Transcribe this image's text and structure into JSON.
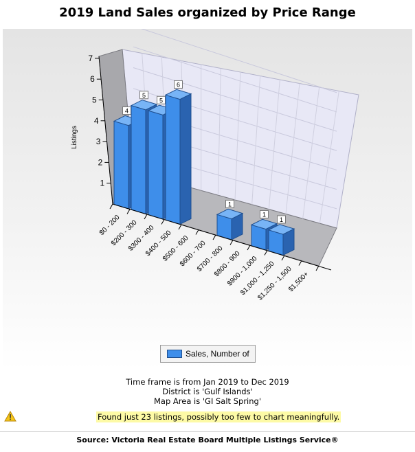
{
  "title": "2019 Land Sales organized by Price Range",
  "chart_data": {
    "type": "bar",
    "title": "2019 Land Sales organized by Price Range",
    "ylabel": "Listings",
    "xlabel": "",
    "ylim": [
      0,
      7
    ],
    "yticks": [
      "1",
      "2",
      "3",
      "4",
      "5",
      "6",
      "7"
    ],
    "categories": [
      "$0 - 200",
      "$200 - 300",
      "$300 - 400",
      "$400 - 500",
      "$500 - 600",
      "$600 - 700",
      "$700 - 800",
      "$800 - 900",
      "$900 - 1,000",
      "$1,000 - 1,250",
      "$1,250 - 1,500",
      "$1,500+"
    ],
    "series": [
      {
        "name": "Sales, Number of",
        "values": [
          4,
          5,
          5,
          6,
          0,
          0,
          1,
          0,
          1,
          1,
          0,
          0
        ]
      }
    ],
    "data_labels": [
      "4",
      "5",
      "5",
      "6",
      "",
      "",
      "1",
      "",
      "1",
      "1",
      "",
      ""
    ],
    "grid": true,
    "legend_position": "bottom",
    "bar_color": "#3e8eea"
  },
  "legend": {
    "label": "Sales, Number of"
  },
  "info_lines": [
    "Time frame is from Jan 2019 to Dec 2019",
    "District is 'Gulf Islands'",
    "Map Area is 'GI Salt Spring'"
  ],
  "warning": "Found just 23 listings, possibly too few to chart meaningfully.",
  "source": "Source: Victoria Real Estate Board Multiple Listings Service®"
}
